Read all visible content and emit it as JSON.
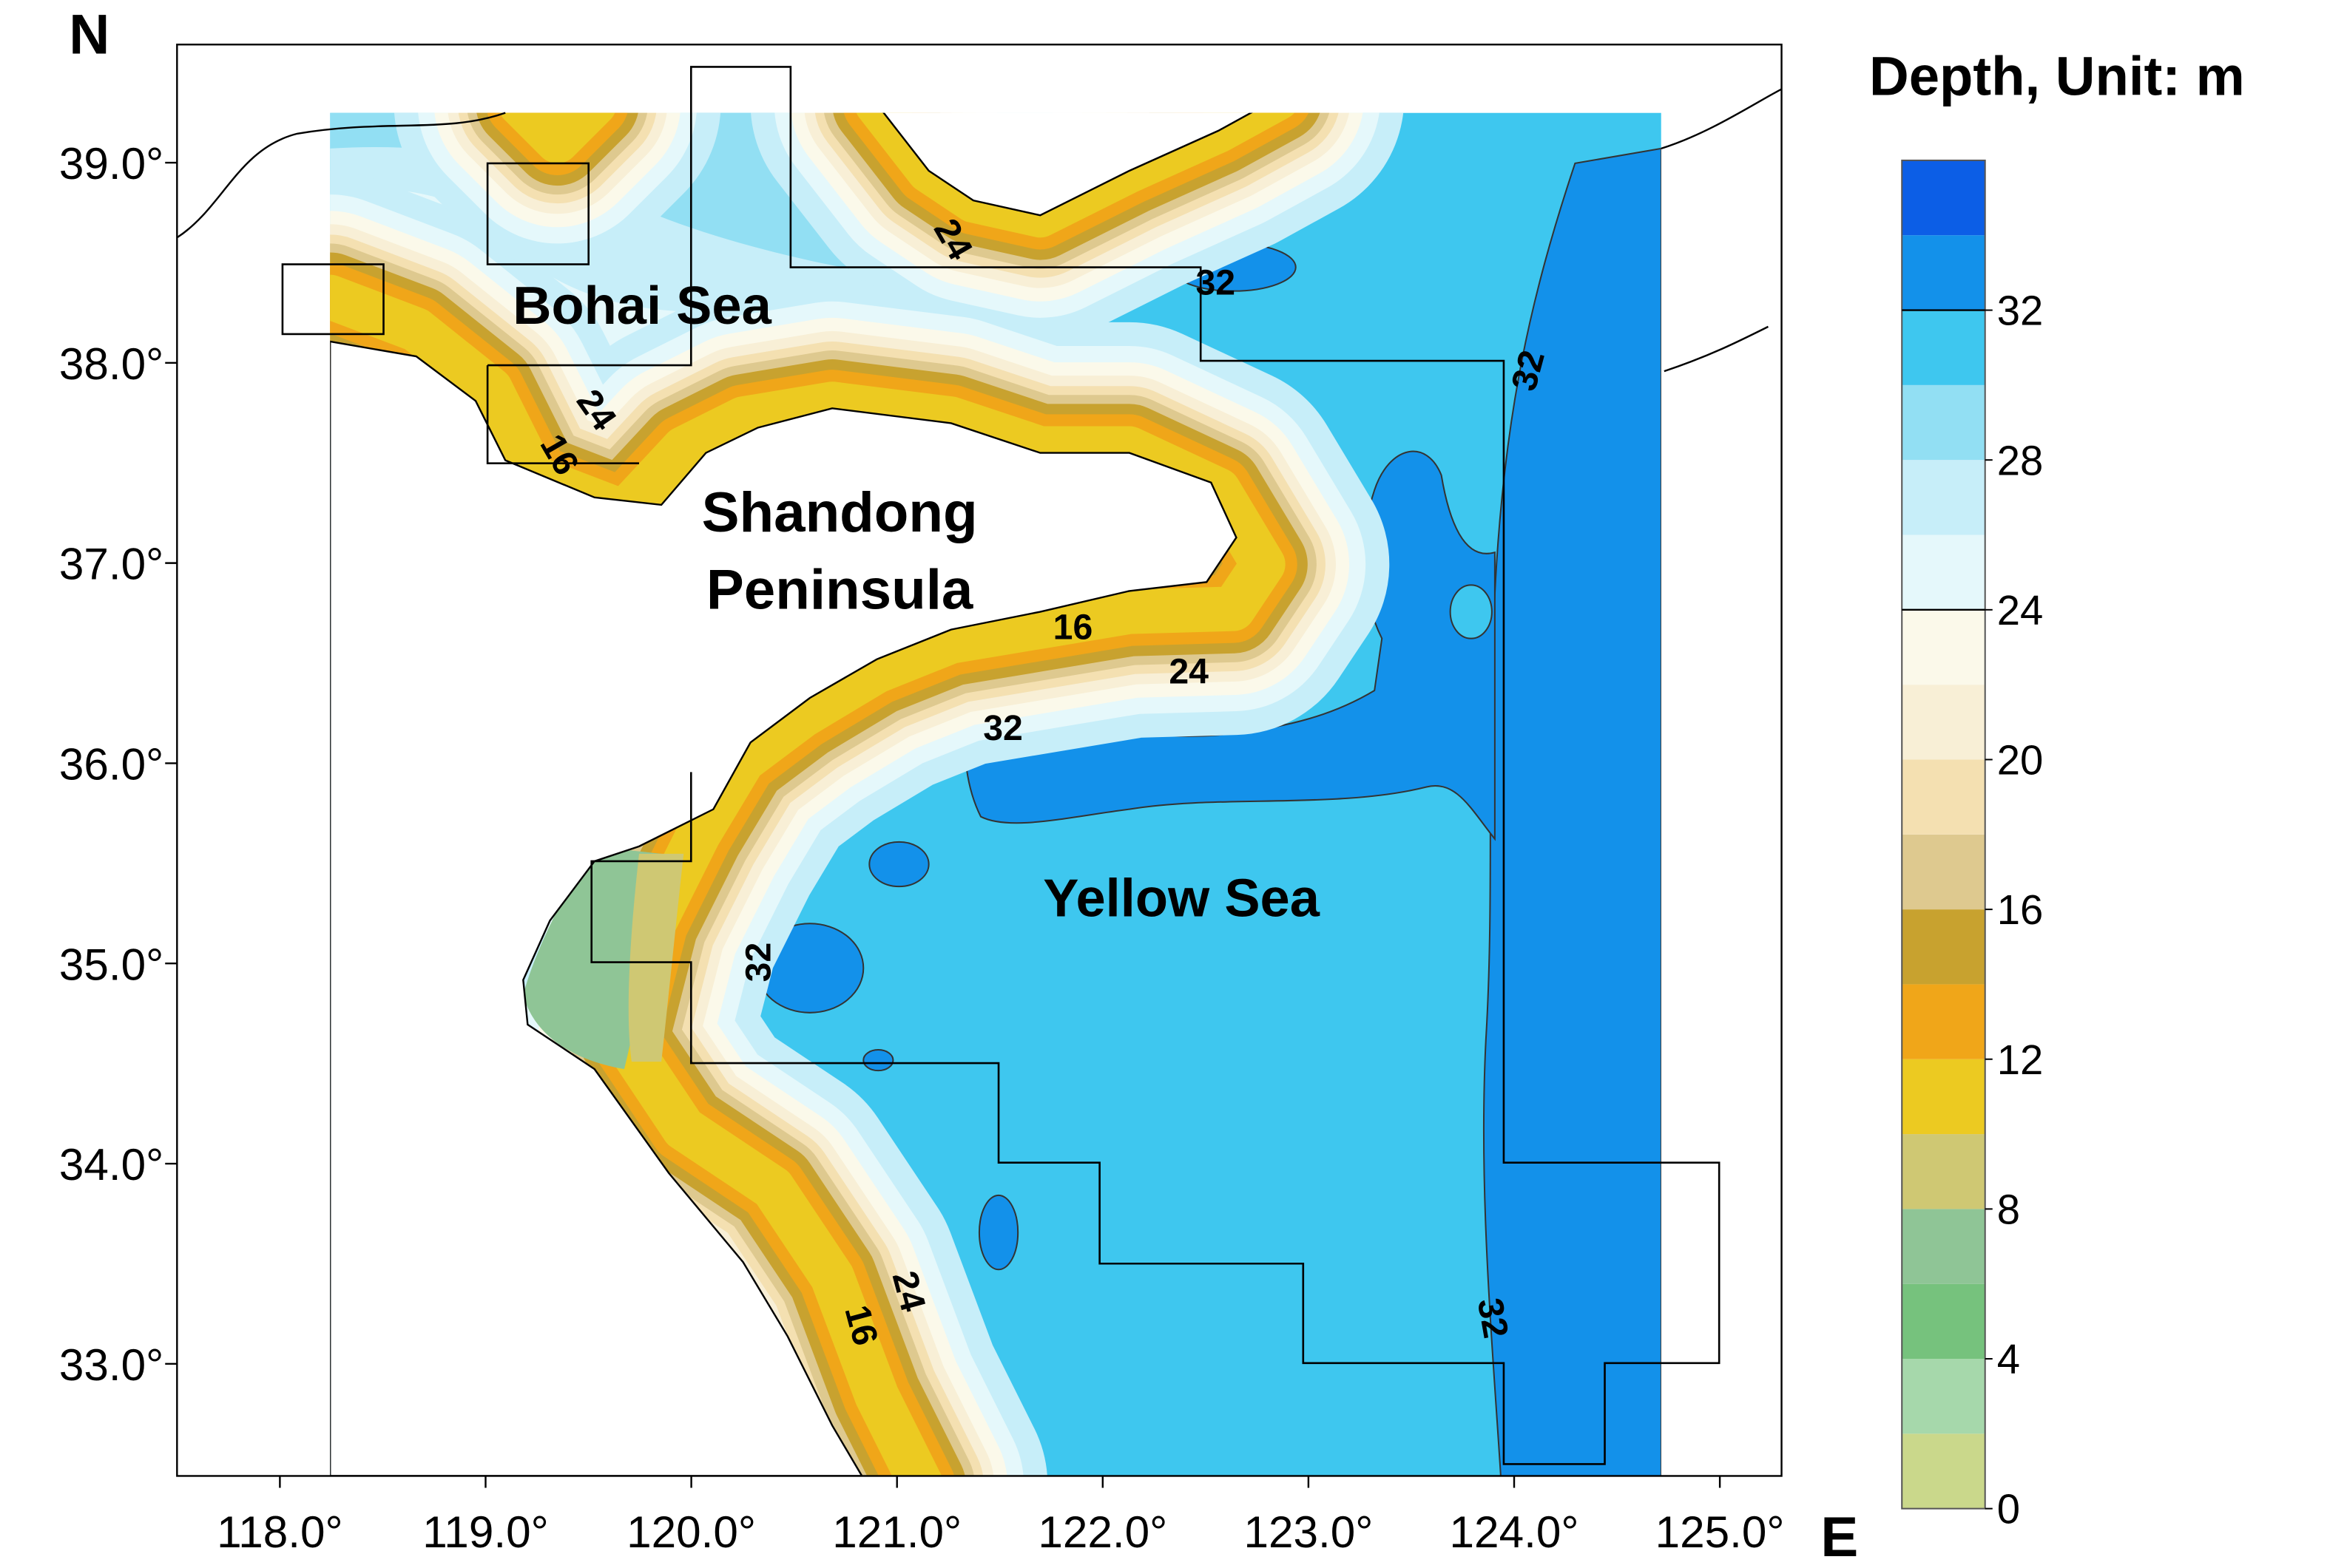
{
  "map": {
    "title": "Depth, Unit: m",
    "north_label": "N",
    "east_label": "E",
    "xlim": [
      117.5,
      125.3
    ],
    "ylim": [
      32.44,
      39.59
    ],
    "xticks": [
      {
        "value": 118,
        "label": "118.0°"
      },
      {
        "value": 119,
        "label": "119.0°"
      },
      {
        "value": 120,
        "label": "120.0°"
      },
      {
        "value": 121,
        "label": "121.0°"
      },
      {
        "value": 122,
        "label": "122.0°"
      },
      {
        "value": 123,
        "label": "123.0°"
      },
      {
        "value": 124,
        "label": "124.0°"
      },
      {
        "value": 125,
        "label": "125.0°"
      }
    ],
    "yticks": [
      {
        "value": 33,
        "label": "33.0°"
      },
      {
        "value": 34,
        "label": "34.0°"
      },
      {
        "value": 35,
        "label": "35.0°"
      },
      {
        "value": 36,
        "label": "36.0°"
      },
      {
        "value": 37,
        "label": "37.0°"
      },
      {
        "value": 38,
        "label": "38.0°"
      },
      {
        "value": 39,
        "label": "39.0°"
      }
    ],
    "region_labels": [
      "Bohai Sea",
      "Shandong",
      "Peninsula",
      "Yellow Sea"
    ],
    "contour_labels": [
      24,
      32,
      32,
      24,
      16,
      16,
      24,
      32,
      32,
      24,
      16,
      32
    ],
    "colorbar": {
      "levels": [
        0,
        2,
        4,
        6,
        8,
        10,
        12,
        14,
        16,
        18,
        20,
        22,
        24,
        26,
        28,
        30,
        32,
        34,
        36
      ],
      "colors": [
        "#cad88b",
        "#a6d8ab",
        "#76c27d",
        "#8fc596",
        "#cfc873",
        "#ecca21",
        "#f0a619",
        "#c8a22f",
        "#dec98f",
        "#f4e0b1",
        "#f8efd6",
        "#fbf9ea",
        "#e5f8fb",
        "#c7eef9",
        "#92dff3",
        "#3ec7ef",
        "#1391ea",
        "#0c5ee6"
      ],
      "ticks": [
        0,
        4,
        8,
        12,
        16,
        20,
        24,
        28,
        32
      ],
      "contour_lines": [
        24,
        32
      ]
    }
  }
}
